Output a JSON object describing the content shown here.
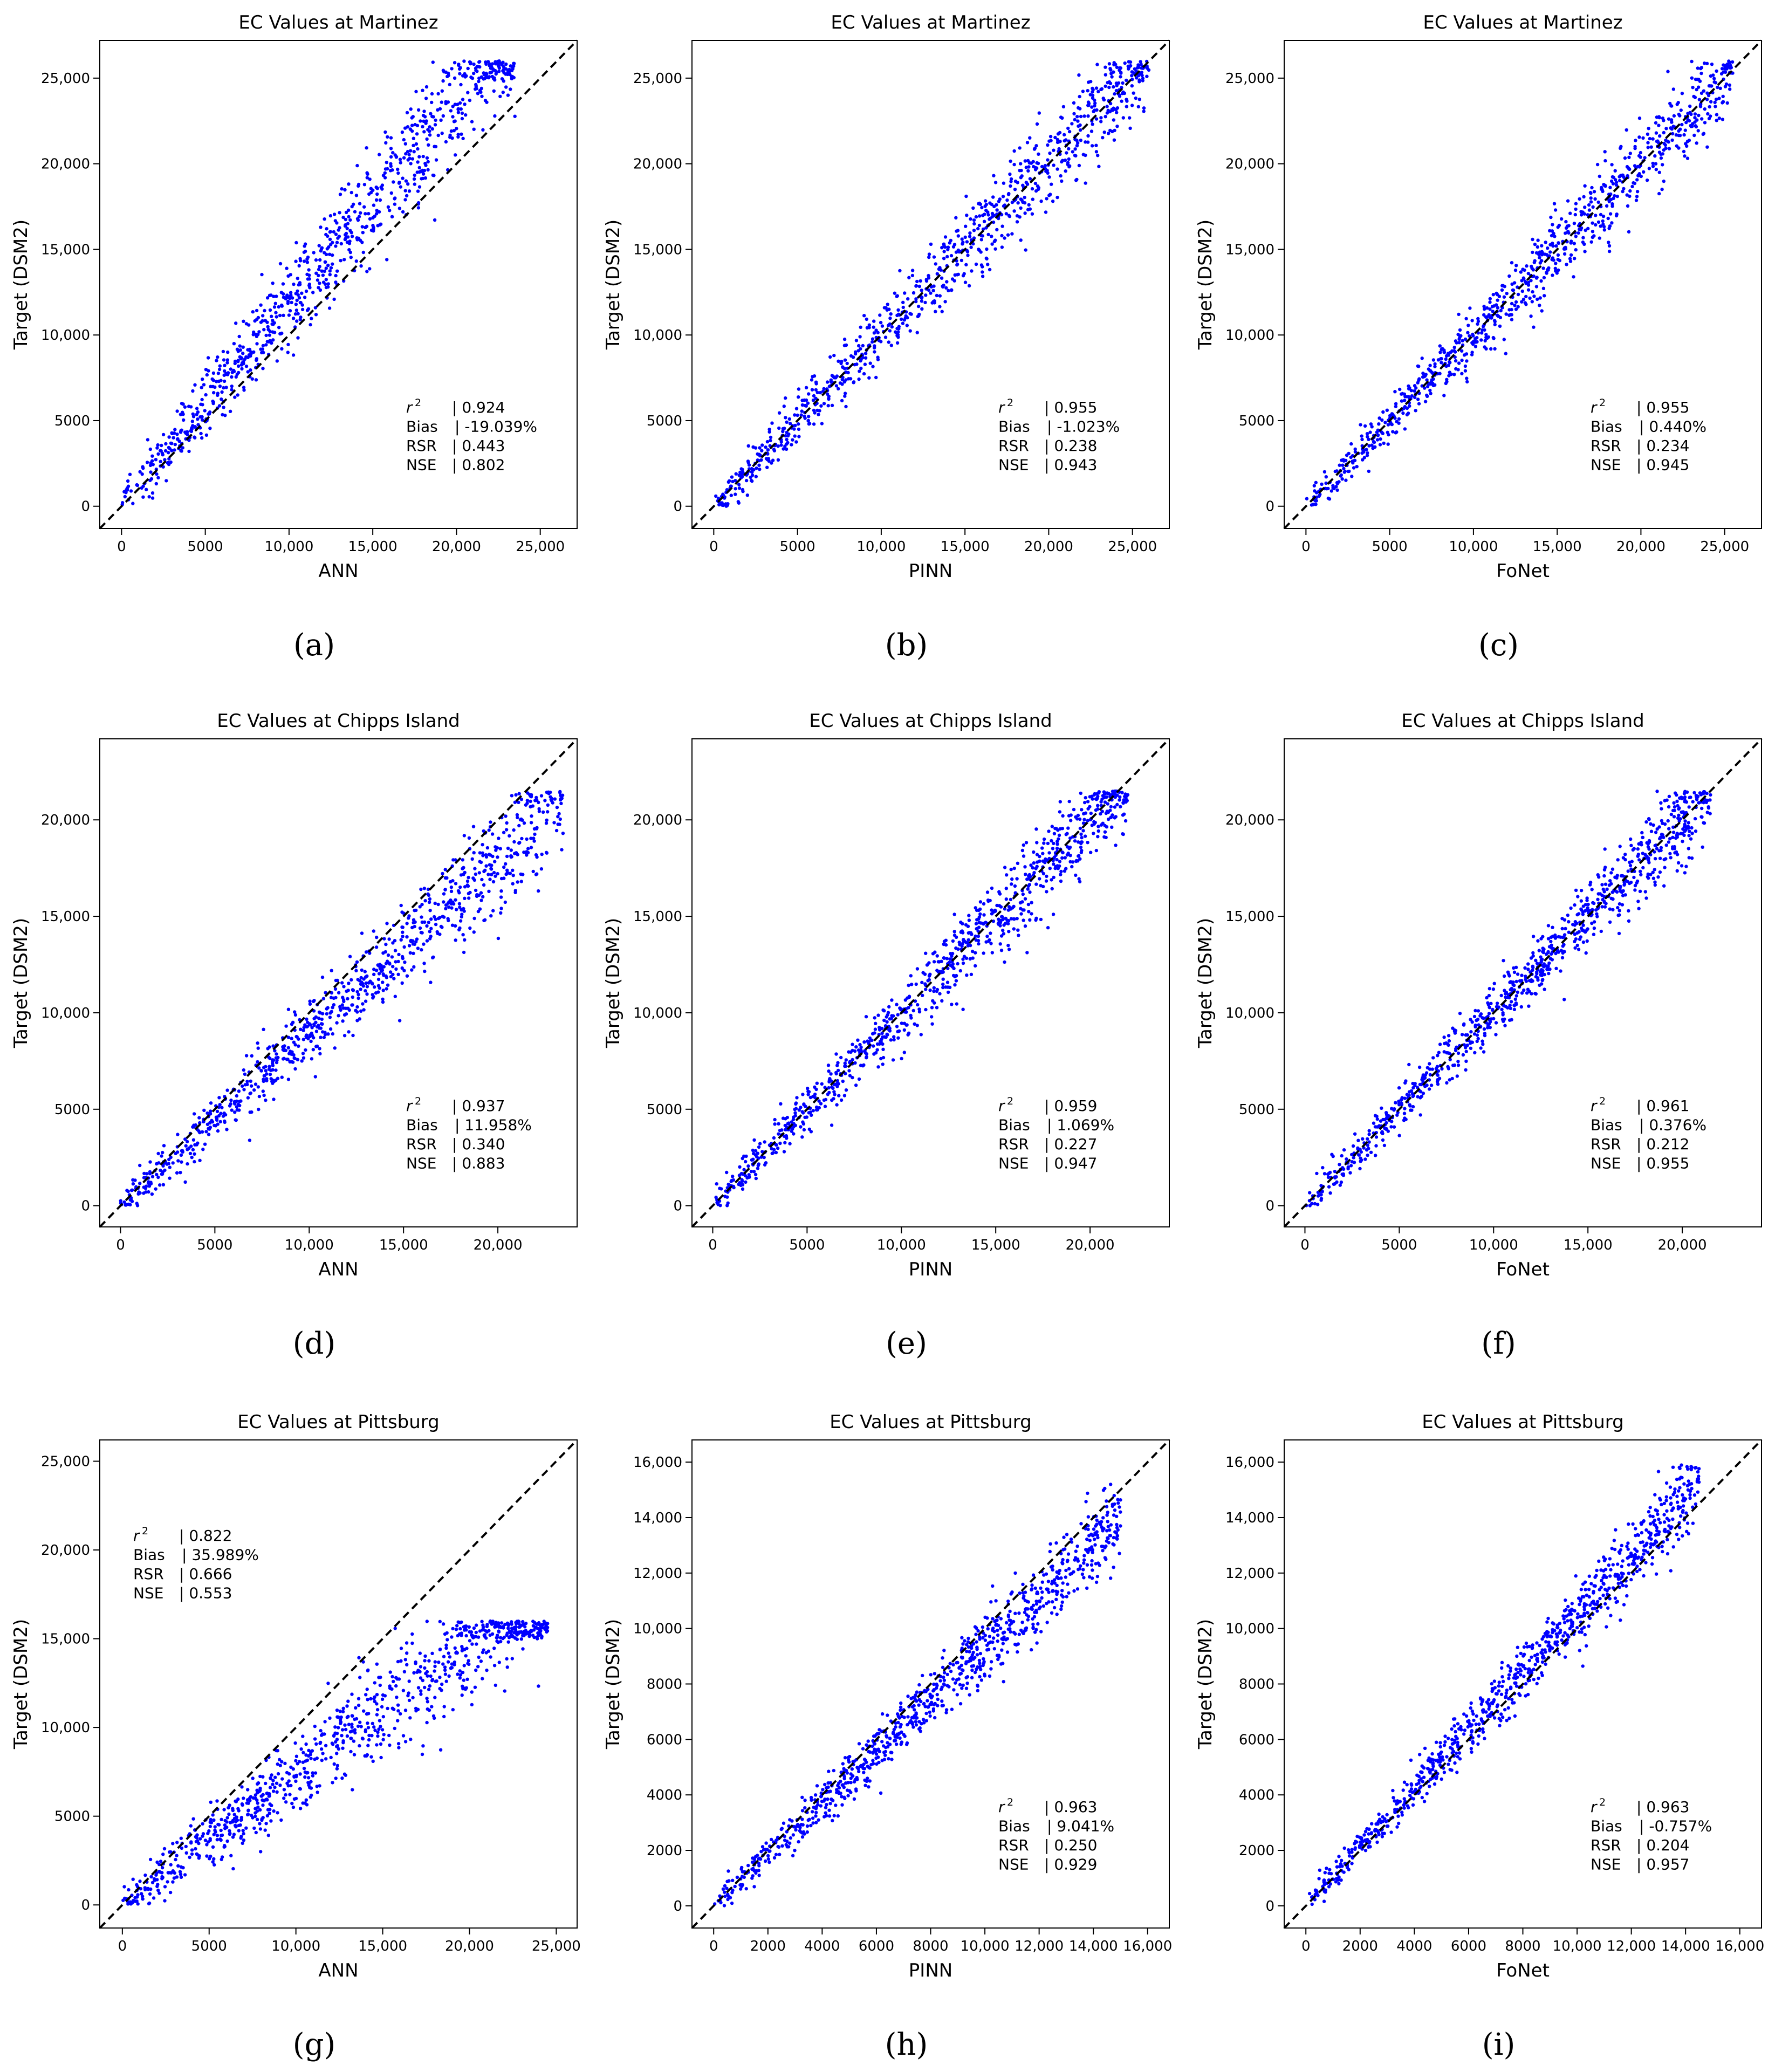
{
  "chart_data": [
    {
      "id": "a",
      "type": "scatter",
      "title": "EC Values at Martinez",
      "xlabel": "ANN",
      "ylabel": "Target (DSM2)",
      "caption": "(a)",
      "xlim": [
        -1300,
        27200
      ],
      "ylim": [
        -1300,
        27200
      ],
      "xticks": [
        0,
        5000,
        10000,
        15000,
        20000,
        25000
      ],
      "yticks": [
        0,
        5000,
        10000,
        15000,
        20000,
        25000
      ],
      "xtick_labels": [
        "0",
        "5000",
        "10,000",
        "15,000",
        "20,000",
        "25,000"
      ],
      "ytick_labels": [
        "0",
        "5000",
        "10,000",
        "15,000",
        "20,000",
        "25,000"
      ],
      "stats": {
        "r2_label": "r",
        "r2_sup": "2",
        "r2": "| 0.924",
        "bias_label": "Bias",
        "bias": "| -19.039%",
        "rsr_label": "RSR",
        "rsr": "| 0.443",
        "nse_label": "NSE",
        "nse": "| 0.802"
      },
      "stats_pos": "bottom-right",
      "reference_line": "y = x (dashed)",
      "generator": {
        "n": 900,
        "xmax": 23500,
        "ymax": 26000,
        "slope": 1.18,
        "spread": 2100,
        "seed": 11
      }
    },
    {
      "id": "b",
      "type": "scatter",
      "title": "EC Values at Martinez",
      "xlabel": "PINN",
      "ylabel": "Target (DSM2)",
      "caption": "(b)",
      "xlim": [
        -1300,
        27200
      ],
      "ylim": [
        -1300,
        27200
      ],
      "xticks": [
        0,
        5000,
        10000,
        15000,
        20000,
        25000
      ],
      "yticks": [
        0,
        5000,
        10000,
        15000,
        20000,
        25000
      ],
      "xtick_labels": [
        "0",
        "5000",
        "10,000",
        "15,000",
        "20,000",
        "25,000"
      ],
      "ytick_labels": [
        "0",
        "5000",
        "10,000",
        "15,000",
        "20,000",
        "25,000"
      ],
      "stats": {
        "r2_label": "r",
        "r2_sup": "2",
        "r2": "| 0.955",
        "bias_label": "Bias",
        "bias": "| -1.023%",
        "rsr_label": "RSR",
        "rsr": "| 0.238",
        "nse_label": "NSE",
        "nse": "| 0.943"
      },
      "stats_pos": "bottom-right",
      "reference_line": "y = x (dashed)",
      "generator": {
        "n": 900,
        "xmax": 26000,
        "ymax": 26000,
        "slope": 1.0,
        "spread": 1500,
        "seed": 23
      }
    },
    {
      "id": "c",
      "type": "scatter",
      "title": "EC Values at Martinez",
      "xlabel": "FoNet",
      "ylabel": "Target (DSM2)",
      "caption": "(c)",
      "xlim": [
        -1300,
        27200
      ],
      "ylim": [
        -1300,
        27200
      ],
      "xticks": [
        0,
        5000,
        10000,
        15000,
        20000,
        25000
      ],
      "yticks": [
        0,
        5000,
        10000,
        15000,
        20000,
        25000
      ],
      "xtick_labels": [
        "0",
        "5000",
        "10,000",
        "15,000",
        "20,000",
        "25,000"
      ],
      "ytick_labels": [
        "0",
        "5000",
        "10,000",
        "15,000",
        "20,000",
        "25,000"
      ],
      "stats": {
        "r2_label": "r",
        "r2_sup": "2",
        "r2": "| 0.955",
        "bias_label": "Bias",
        "bias": "| 0.440%",
        "rsr_label": "RSR",
        "rsr": "| 0.234",
        "nse_label": "NSE",
        "nse": "| 0.945"
      },
      "stats_pos": "bottom-right",
      "reference_line": "y = x (dashed)",
      "generator": {
        "n": 900,
        "xmax": 25500,
        "ymax": 26000,
        "slope": 1.0,
        "spread": 1450,
        "seed": 37
      }
    },
    {
      "id": "d",
      "type": "scatter",
      "title": "EC Values at Chipps Island",
      "xlabel": "ANN",
      "ylabel": "Target (DSM2)",
      "caption": "(d)",
      "xlim": [
        -1100,
        24200
      ],
      "ylim": [
        -1100,
        24200
      ],
      "xticks": [
        0,
        5000,
        10000,
        15000,
        20000
      ],
      "yticks": [
        0,
        5000,
        10000,
        15000,
        20000
      ],
      "xtick_labels": [
        "0",
        "5000",
        "10,000",
        "15,000",
        "20,000"
      ],
      "ytick_labels": [
        "0",
        "5000",
        "10,000",
        "15,000",
        "20,000"
      ],
      "stats": {
        "r2_label": "r",
        "r2_sup": "2",
        "r2": "| 0.937",
        "bias_label": "Bias",
        "bias": "| 11.958%",
        "rsr_label": "RSR",
        "rsr": "| 0.340",
        "nse_label": "NSE",
        "nse": "| 0.883"
      },
      "stats_pos": "bottom-right",
      "reference_line": "y = x (dashed)",
      "generator": {
        "n": 900,
        "xmax": 23500,
        "ymax": 21500,
        "slope": 0.9,
        "spread": 1500,
        "seed": 41
      }
    },
    {
      "id": "e",
      "type": "scatter",
      "title": "EC Values at Chipps Island",
      "xlabel": "PINN",
      "ylabel": "Target (DSM2)",
      "caption": "(e)",
      "xlim": [
        -1100,
        24200
      ],
      "ylim": [
        -1100,
        24200
      ],
      "xticks": [
        0,
        5000,
        10000,
        15000,
        20000
      ],
      "yticks": [
        0,
        5000,
        10000,
        15000,
        20000
      ],
      "xtick_labels": [
        "0",
        "5000",
        "10,000",
        "15,000",
        "20,000"
      ],
      "ytick_labels": [
        "0",
        "5000",
        "10,000",
        "15,000",
        "20,000"
      ],
      "stats": {
        "r2_label": "r",
        "r2_sup": "2",
        "r2": "| 0.959",
        "bias_label": "Bias",
        "bias": "| 1.069%",
        "rsr_label": "RSR",
        "rsr": "| 0.227",
        "nse_label": "NSE",
        "nse": "| 0.947"
      },
      "stats_pos": "bottom-right",
      "reference_line": "y = x (dashed)",
      "generator": {
        "n": 900,
        "xmax": 22000,
        "ymax": 21500,
        "slope": 1.0,
        "spread": 1250,
        "seed": 53
      }
    },
    {
      "id": "f",
      "type": "scatter",
      "title": "EC Values at Chipps Island",
      "xlabel": "FoNet",
      "ylabel": "Target (DSM2)",
      "caption": "(f)",
      "xlim": [
        -1100,
        24200
      ],
      "ylim": [
        -1100,
        24200
      ],
      "xticks": [
        0,
        5000,
        10000,
        15000,
        20000
      ],
      "yticks": [
        0,
        5000,
        10000,
        15000,
        20000
      ],
      "xtick_labels": [
        "0",
        "5000",
        "10,000",
        "15,000",
        "20,000"
      ],
      "ytick_labels": [
        "0",
        "5000",
        "10,000",
        "15,000",
        "20,000"
      ],
      "stats": {
        "r2_label": "r",
        "r2_sup": "2",
        "r2": "| 0.961",
        "bias_label": "Bias",
        "bias": "| 0.376%",
        "rsr_label": "RSR",
        "rsr": "| 0.212",
        "nse_label": "NSE",
        "nse": "| 0.955"
      },
      "stats_pos": "bottom-right",
      "reference_line": "y = x (dashed)",
      "generator": {
        "n": 900,
        "xmax": 21500,
        "ymax": 21500,
        "slope": 1.0,
        "spread": 1150,
        "seed": 67
      }
    },
    {
      "id": "g",
      "type": "scatter",
      "title": "EC Values at Pittsburg",
      "xlabel": "ANN",
      "ylabel": "Target (DSM2)",
      "caption": "(g)",
      "xlim": [
        -1300,
        26200
      ],
      "ylim": [
        -1300,
        26200
      ],
      "xticks": [
        0,
        5000,
        10000,
        15000,
        20000,
        25000
      ],
      "yticks": [
        0,
        5000,
        10000,
        15000,
        20000,
        25000
      ],
      "xtick_labels": [
        "0",
        "5000",
        "10,000",
        "15,000",
        "20,000",
        "25,000"
      ],
      "ytick_labels": [
        "0",
        "5000",
        "10,000",
        "15,000",
        "20,000",
        "25,000"
      ],
      "stats": {
        "r2_label": "r",
        "r2_sup": "2",
        "r2": "| 0.822",
        "bias_label": "Bias",
        "bias": "| 35.989%",
        "rsr_label": "RSR",
        "rsr": "| 0.666",
        "nse_label": "NSE",
        "nse": "| 0.553"
      },
      "stats_pos": "top-left",
      "reference_line": "y = x (dashed)",
      "generator": {
        "n": 900,
        "xmax": 24500,
        "ymax": 16000,
        "slope": 0.74,
        "spread": 1900,
        "seed": 79
      }
    },
    {
      "id": "h",
      "type": "scatter",
      "title": "EC Values at Pittsburg",
      "xlabel": "PINN",
      "ylabel": "Target (DSM2)",
      "caption": "(h)",
      "xlim": [
        -800,
        16800
      ],
      "ylim": [
        -800,
        16800
      ],
      "xticks": [
        0,
        2000,
        4000,
        6000,
        8000,
        10000,
        12000,
        14000,
        16000
      ],
      "yticks": [
        0,
        2000,
        4000,
        6000,
        8000,
        10000,
        12000,
        14000,
        16000
      ],
      "xtick_labels": [
        "0",
        "2000",
        "4000",
        "6000",
        "8000",
        "10,000",
        "12,000",
        "14,000",
        "16,000"
      ],
      "ytick_labels": [
        "0",
        "2000",
        "4000",
        "6000",
        "8000",
        "10,000",
        "12,000",
        "14,000",
        "16,000"
      ],
      "stats": {
        "r2_label": "r",
        "r2_sup": "2",
        "r2": "| 0.963",
        "bias_label": "Bias",
        "bias": "| 9.041%",
        "rsr_label": "RSR",
        "rsr": "| 0.250",
        "nse_label": "NSE",
        "nse": "| 0.929"
      },
      "stats_pos": "bottom-right",
      "reference_line": "y = x (dashed)",
      "generator": {
        "n": 900,
        "xmax": 15000,
        "ymax": 16000,
        "slope": 0.93,
        "spread": 800,
        "seed": 83
      }
    },
    {
      "id": "i",
      "type": "scatter",
      "title": "EC Values at Pittsburg",
      "xlabel": "FoNet",
      "ylabel": "Target (DSM2)",
      "caption": "(i)",
      "xlim": [
        -800,
        16800
      ],
      "ylim": [
        -800,
        16800
      ],
      "xticks": [
        0,
        2000,
        4000,
        6000,
        8000,
        10000,
        12000,
        14000,
        16000
      ],
      "yticks": [
        0,
        2000,
        4000,
        6000,
        8000,
        10000,
        12000,
        14000,
        16000
      ],
      "xtick_labels": [
        "0",
        "2000",
        "4000",
        "6000",
        "8000",
        "10,000",
        "12,000",
        "14,000",
        "16,000"
      ],
      "ytick_labels": [
        "0",
        "2000",
        "4000",
        "6000",
        "8000",
        "10,000",
        "12,000",
        "14,000",
        "16,000"
      ],
      "stats": {
        "r2_label": "r",
        "r2_sup": "2",
        "r2": "| 0.963",
        "bias_label": "Bias",
        "bias": "| -0.757%",
        "rsr_label": "RSR",
        "rsr": "| 0.204",
        "nse_label": "NSE",
        "nse": "| 0.957"
      },
      "stats_pos": "bottom-right",
      "reference_line": "y = x (dashed)",
      "generator": {
        "n": 900,
        "xmax": 14500,
        "ymax": 16000,
        "slope": 1.05,
        "spread": 750,
        "seed": 97
      }
    }
  ],
  "colors": {
    "points": "#0000ff",
    "reference": "#000000",
    "axes": "#000000"
  }
}
